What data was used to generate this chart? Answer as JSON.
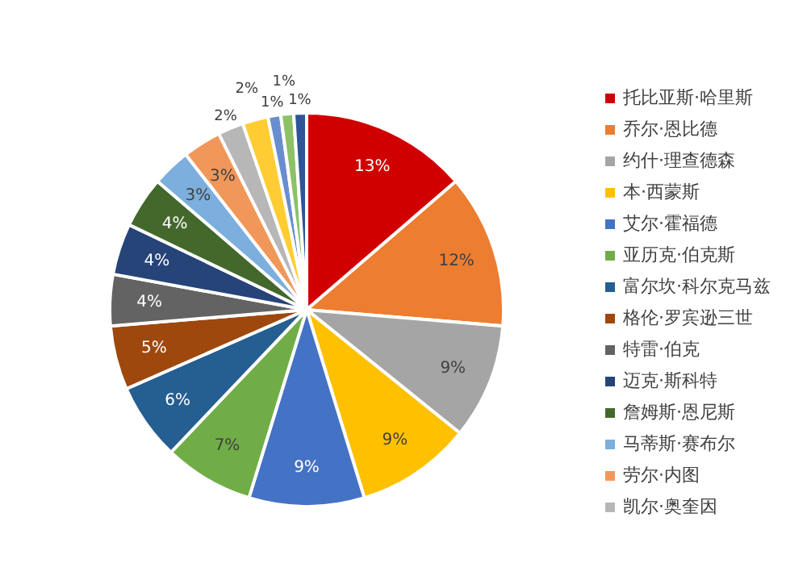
{
  "chart_data": {
    "type": "pie",
    "categories": [
      "托比亚斯·哈里斯",
      "乔尔·恩比德",
      "约什·理查德森",
      "本·西蒙斯",
      "艾尔·霍福德",
      "亚历克·伯克斯",
      "富尔坎·科尔克马兹",
      "格伦·罗宾逊三世",
      "特雷·伯克",
      "迈克·斯科特",
      "詹姆斯·恩尼斯",
      "马蒂斯·赛布尔",
      "劳尔·内图",
      "凯尔·奥奎因",
      null,
      null,
      null,
      null
    ],
    "values": [
      13,
      12,
      9,
      9,
      9,
      7,
      6,
      5,
      4,
      4,
      4,
      3,
      3,
      2,
      2,
      1,
      1,
      1
    ],
    "value_labels": [
      "13%",
      "12%",
      "9%",
      "9%",
      "9%",
      "7%",
      "6%",
      "5%",
      "4%",
      "4%",
      "4%",
      "3%",
      "3%",
      "2%",
      "2%",
      "1%",
      "1%",
      "1%"
    ],
    "colors": [
      "#d00000",
      "#ed7d31",
      "#a5a5a5",
      "#ffc000",
      "#4472c4",
      "#70ad47",
      "#255e91",
      "#9e480e",
      "#636363",
      "#264478",
      "#43682b",
      "#7cafdd",
      "#f1975a",
      "#b7b7b7",
      "#ffcd33",
      "#698ed0",
      "#8cc168",
      "#2f5597"
    ],
    "legend": "right"
  }
}
